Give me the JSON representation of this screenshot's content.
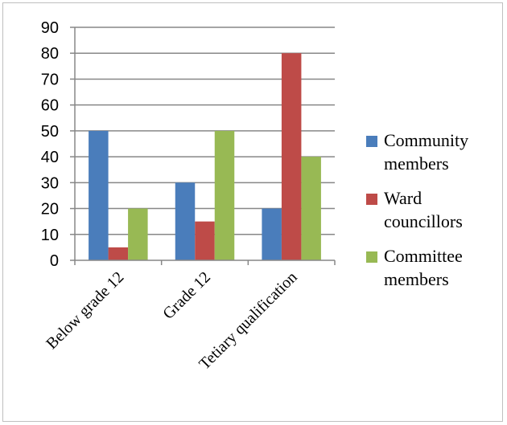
{
  "chart_data": {
    "type": "bar",
    "categories": [
      "Below grade 12",
      "Grade 12",
      "Tetiary qualification"
    ],
    "series": [
      {
        "name": "Community members",
        "name_lines": [
          "Community",
          "members"
        ],
        "color": "#4a7dbb",
        "values": [
          50,
          30,
          20
        ]
      },
      {
        "name": "Ward councillors",
        "name_lines": [
          "Ward",
          "councillors"
        ],
        "color": "#be4b48",
        "values": [
          5,
          15,
          80
        ]
      },
      {
        "name": "Committee members",
        "name_lines": [
          "Committee",
          "members"
        ],
        "color": "#98b954",
        "values": [
          20,
          50,
          40
        ]
      }
    ],
    "ylim": [
      0,
      90
    ],
    "yticks": [
      0,
      10,
      20,
      30,
      40,
      50,
      60,
      70,
      80,
      90
    ],
    "grid": true,
    "legend": "right"
  }
}
